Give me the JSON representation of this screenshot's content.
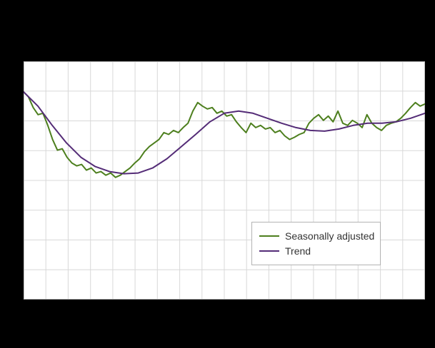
{
  "figure": {
    "background": "#000000",
    "plot_background": "#ffffff",
    "grid_color": "#d8d8d8",
    "plot_border_color": "#c0c0c0"
  },
  "legend": {
    "items": [
      {
        "label": "Seasonally adjusted",
        "color": "#4d7f1e"
      },
      {
        "label": "Trend",
        "color": "#542c77"
      }
    ]
  },
  "chart_data": {
    "type": "line",
    "title": "",
    "xlabel": "",
    "ylabel": "",
    "x_tick_labels": [],
    "y_tick_labels": [],
    "ylim": [
      0,
      100
    ],
    "grid": true,
    "x_grid_divisions": 18,
    "y_grid_divisions": 8,
    "legend_position": "inside lower right-of-center",
    "series": [
      {
        "name": "Seasonally adjusted",
        "color": "#4d7f1e",
        "stroke_width": 2,
        "values": [
          87.2,
          85.1,
          80.6,
          77.6,
          78.2,
          73.1,
          67.2,
          62.7,
          63.3,
          59.7,
          57.3,
          56.1,
          56.7,
          54.3,
          55.2,
          53.1,
          53.7,
          52.2,
          53.1,
          51.3,
          52.2,
          53.7,
          55.2,
          57.3,
          59.1,
          62.1,
          64.2,
          65.7,
          67.2,
          70.1,
          69.3,
          71.0,
          70.1,
          72.2,
          74.0,
          79.1,
          82.7,
          81.2,
          80.0,
          80.6,
          78.2,
          79.1,
          77.0,
          77.6,
          74.6,
          72.2,
          70.1,
          74.0,
          72.2,
          73.1,
          71.6,
          72.2,
          70.1,
          71.0,
          68.7,
          67.2,
          68.1,
          69.3,
          70.1,
          74.0,
          76.1,
          77.6,
          75.2,
          77.0,
          74.6,
          79.1,
          74.0,
          73.1,
          75.2,
          74.0,
          72.2,
          77.6,
          74.0,
          72.2,
          71.0,
          73.1,
          74.0,
          74.6,
          76.1,
          78.2,
          80.6,
          82.7,
          81.2,
          82.1
        ]
      },
      {
        "name": "Trend",
        "color": "#542c77",
        "stroke_width": 2,
        "values": [
          87.2,
          81.2,
          73.1,
          65.7,
          59.7,
          55.8,
          53.7,
          52.8,
          53.1,
          55.2,
          59.1,
          64.2,
          69.3,
          74.6,
          78.2,
          79.1,
          78.2,
          76.1,
          74.0,
          72.2,
          71.0,
          70.7,
          71.6,
          73.1,
          74.0,
          74.0,
          74.6,
          76.1,
          78.2
        ]
      }
    ]
  }
}
